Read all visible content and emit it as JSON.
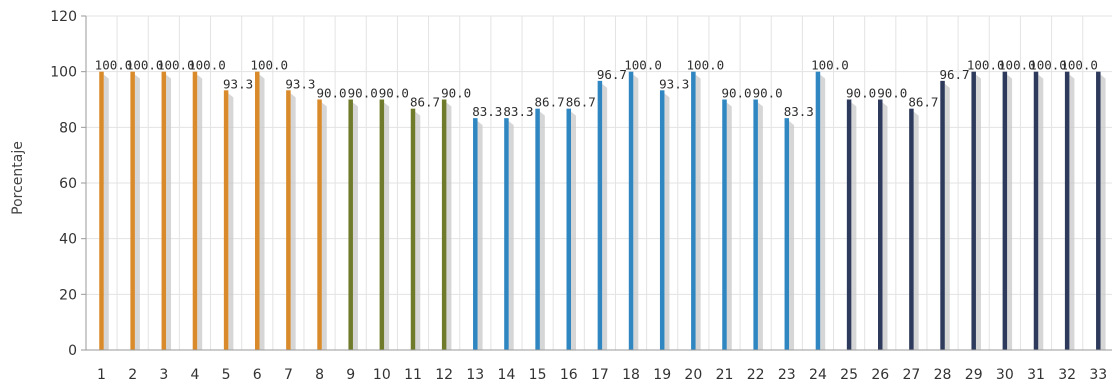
{
  "chart_data": {
    "type": "bar",
    "title": "",
    "xlabel": "",
    "ylabel": "Porcentaje",
    "ylim": [
      0,
      120
    ],
    "yticks": [
      0,
      20,
      40,
      60,
      80,
      100,
      120
    ],
    "grid": true,
    "categories": [
      "1",
      "2",
      "3",
      "4",
      "5",
      "6",
      "7",
      "8",
      "9",
      "10",
      "11",
      "12",
      "13",
      "14",
      "15",
      "16",
      "17",
      "18",
      "19",
      "20",
      "21",
      "22",
      "23",
      "24",
      "25",
      "26",
      "27",
      "28",
      "29",
      "30",
      "31",
      "32",
      "33"
    ],
    "values": [
      100.0,
      100.0,
      100.0,
      100.0,
      93.3,
      100.0,
      93.3,
      90.0,
      90.0,
      90.0,
      86.7,
      90.0,
      83.3,
      83.3,
      86.7,
      86.7,
      96.7,
      100.0,
      93.3,
      100.0,
      90.0,
      90.0,
      83.3,
      100.0,
      90.0,
      90.0,
      86.7,
      96.7,
      100.0,
      100.0,
      100.0,
      100.0,
      100.0
    ],
    "value_labels": [
      "100.0",
      "100.0",
      "100.0",
      "100.0",
      "93.3",
      "100.0",
      "93.3",
      "90.0",
      "90.0",
      "90.0",
      "86.7",
      "90.0",
      "83.3",
      "83.3",
      "86.7",
      "86.7",
      "96.7",
      "100.0",
      "93.3",
      "100.0",
      "90.0",
      "90.0",
      "83.3",
      "100.0",
      "90.0",
      "90.0",
      "86.7",
      "96.7",
      "100.0",
      "100.0",
      "100.0",
      "100.0",
      "100.0"
    ],
    "value_labels_shown": [
      true,
      true,
      true,
      true,
      true,
      true,
      true,
      true,
      true,
      true,
      true,
      true,
      true,
      true,
      true,
      true,
      true,
      true,
      true,
      true,
      true,
      true,
      true,
      true,
      true,
      true,
      true,
      true,
      true,
      true,
      true,
      true,
      false
    ],
    "bar_colors": [
      "#d98a2a",
      "#d98a2a",
      "#d98a2a",
      "#d98a2a",
      "#d98a2a",
      "#d98a2a",
      "#d98a2a",
      "#d98a2a",
      "#6f7a2a",
      "#6f7a2a",
      "#6f7a2a",
      "#6f7a2a",
      "#2f86c1",
      "#2f86c1",
      "#2f86c1",
      "#2f86c1",
      "#2f86c1",
      "#2f86c1",
      "#2f86c1",
      "#2f86c1",
      "#2f86c1",
      "#2f86c1",
      "#2f86c1",
      "#2f86c1",
      "#2d3a5c",
      "#2d3a5c",
      "#2d3a5c",
      "#2d3a5c",
      "#2d3a5c",
      "#2d3a5c",
      "#2d3a5c",
      "#2d3a5c",
      "#2d3a5c"
    ],
    "shadow_color": "#c8c8c8",
    "axis_color": "#9a9a9a",
    "grid_color": "#e3e3e3"
  }
}
